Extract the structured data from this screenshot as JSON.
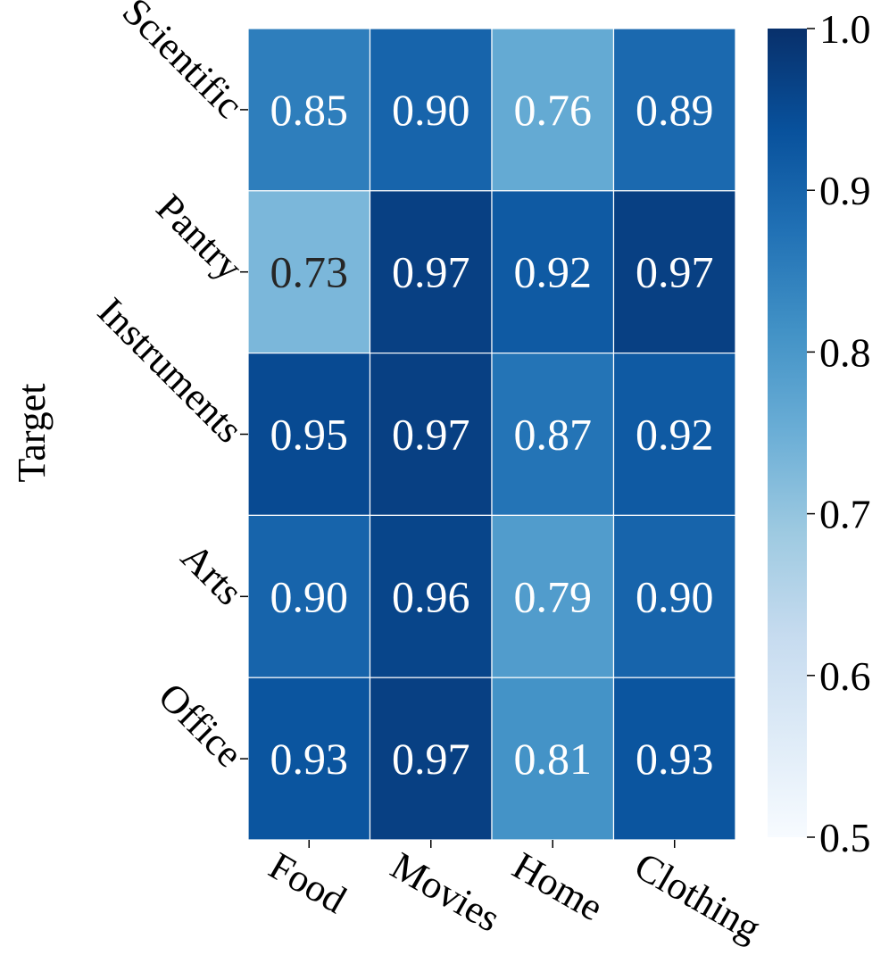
{
  "chart_data": {
    "type": "heatmap",
    "title": "",
    "xlabel": "",
    "ylabel": "Target",
    "x_categories": [
      "Food",
      "Movies",
      "Home",
      "Clothing"
    ],
    "y_categories": [
      "Scientific",
      "Pantry",
      "Instruments",
      "Arts",
      "Office"
    ],
    "values": [
      [
        0.85,
        0.9,
        0.76,
        0.89
      ],
      [
        0.73,
        0.97,
        0.92,
        0.97
      ],
      [
        0.95,
        0.97,
        0.87,
        0.92
      ],
      [
        0.9,
        0.96,
        0.79,
        0.9
      ],
      [
        0.93,
        0.97,
        0.81,
        0.93
      ]
    ],
    "value_labels": [
      [
        "0.85",
        "0.90",
        "0.76",
        "0.89"
      ],
      [
        "0.73",
        "0.97",
        "0.92",
        "0.97"
      ],
      [
        "0.95",
        "0.97",
        "0.87",
        "0.92"
      ],
      [
        "0.90",
        "0.96",
        "0.79",
        "0.90"
      ],
      [
        "0.93",
        "0.97",
        "0.81",
        "0.93"
      ]
    ],
    "colorbar": {
      "range": [
        0.5,
        1.0
      ],
      "ticks": [
        0.5,
        0.6,
        0.7,
        0.8,
        0.9,
        1.0
      ],
      "tick_labels": [
        "0.5",
        "0.6",
        "0.7",
        "0.8",
        "0.9",
        "1.0"
      ],
      "colormap": "Blues",
      "position": "right"
    },
    "grid": false,
    "cell_border_color": "#ffffff",
    "text_color_dark_cells": "#ffffff",
    "text_color_light_cells": "#262626"
  }
}
